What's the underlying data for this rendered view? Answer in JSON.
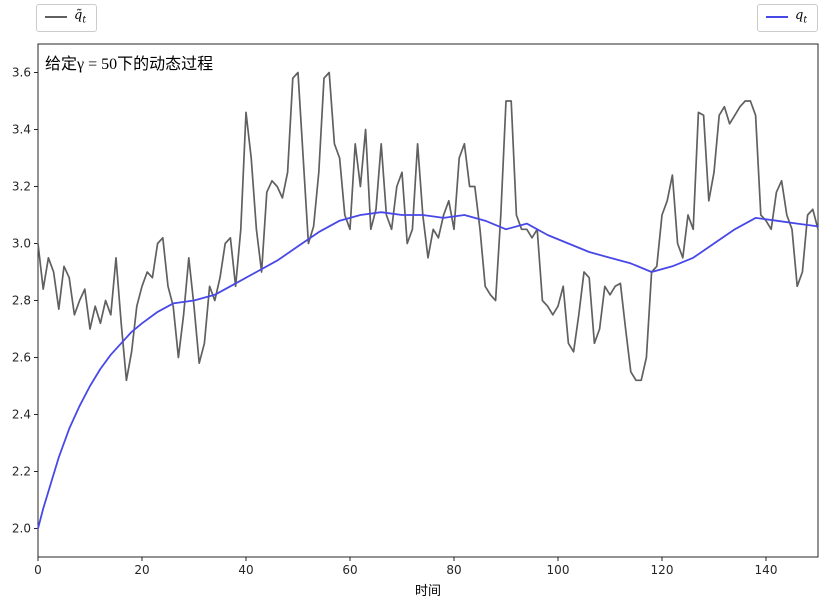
{
  "legend": {
    "left": {
      "base": "q̃",
      "sub": "t"
    },
    "right": {
      "base": "q",
      "sub": "t"
    }
  },
  "chart_data": {
    "type": "line",
    "title": "给定γ = 50下的动态过程",
    "xlabel": "时间",
    "ylabel": "",
    "xlim": [
      0,
      150
    ],
    "ylim": [
      1.9,
      3.7
    ],
    "xticks": [
      0,
      20,
      40,
      60,
      80,
      100,
      120,
      140
    ],
    "yticks": [
      2.0,
      2.2,
      2.4,
      2.6,
      2.8,
      3.0,
      3.2,
      3.4,
      3.6
    ],
    "grid": false,
    "legend_position": "above axes: gray series upper-left, blue series upper-right",
    "series": [
      {
        "name": "q̃t",
        "color": "#606060",
        "line_width": 1.7,
        "values": [
          3.0,
          2.84,
          2.95,
          2.9,
          2.77,
          2.92,
          2.88,
          2.75,
          2.8,
          2.84,
          2.7,
          2.78,
          2.72,
          2.8,
          2.75,
          2.95,
          2.72,
          2.52,
          2.62,
          2.78,
          2.85,
          2.9,
          2.88,
          3.0,
          3.02,
          2.85,
          2.78,
          2.6,
          2.75,
          2.95,
          2.78,
          2.58,
          2.65,
          2.85,
          2.8,
          2.88,
          3.0,
          3.02,
          2.85,
          3.05,
          3.46,
          3.3,
          3.05,
          2.9,
          3.18,
          3.22,
          3.2,
          3.16,
          3.25,
          3.58,
          3.6,
          3.3,
          3.0,
          3.06,
          3.25,
          3.58,
          3.6,
          3.35,
          3.3,
          3.1,
          3.05,
          3.35,
          3.2,
          3.4,
          3.05,
          3.12,
          3.35,
          3.1,
          3.05,
          3.2,
          3.25,
          3.0,
          3.05,
          3.35,
          3.1,
          2.95,
          3.05,
          3.02,
          3.1,
          3.15,
          3.05,
          3.3,
          3.35,
          3.2,
          3.2,
          3.05,
          2.85,
          2.82,
          2.8,
          3.1,
          3.5,
          3.5,
          3.1,
          3.05,
          3.05,
          3.02,
          3.05,
          2.8,
          2.78,
          2.75,
          2.78,
          2.85,
          2.65,
          2.62,
          2.75,
          2.9,
          2.88,
          2.65,
          2.7,
          2.85,
          2.82,
          2.85,
          2.86,
          2.7,
          2.55,
          2.52,
          2.52,
          2.6,
          2.9,
          2.92,
          3.1,
          3.15,
          3.24,
          3.0,
          2.95,
          3.1,
          3.05,
          3.46,
          3.45,
          3.15,
          3.25,
          3.45,
          3.48,
          3.42,
          3.45,
          3.48,
          3.5,
          3.5,
          3.45,
          3.1,
          3.08,
          3.05,
          3.18,
          3.22,
          3.1,
          3.05,
          2.85,
          2.9,
          3.1,
          3.12,
          3.05
        ]
      },
      {
        "name": "qt",
        "color": "#4848e8",
        "line_width": 1.8,
        "x": [
          0,
          1,
          2,
          3,
          4,
          5,
          6,
          8,
          10,
          12,
          14,
          16,
          18,
          20,
          23,
          26,
          30,
          34,
          38,
          42,
          46,
          50,
          54,
          58,
          62,
          66,
          70,
          74,
          78,
          82,
          86,
          90,
          94,
          98,
          102,
          106,
          110,
          114,
          118,
          122,
          126,
          130,
          134,
          138,
          142,
          146,
          150
        ],
        "values": [
          2.0,
          2.07,
          2.13,
          2.19,
          2.25,
          2.3,
          2.35,
          2.43,
          2.5,
          2.56,
          2.61,
          2.65,
          2.69,
          2.72,
          2.76,
          2.79,
          2.8,
          2.82,
          2.86,
          2.9,
          2.94,
          2.99,
          3.04,
          3.08,
          3.1,
          3.11,
          3.1,
          3.1,
          3.09,
          3.1,
          3.08,
          3.05,
          3.07,
          3.03,
          3.0,
          2.97,
          2.95,
          2.93,
          2.9,
          2.92,
          2.95,
          3.0,
          3.05,
          3.09,
          3.08,
          3.07,
          3.06
        ]
      }
    ]
  }
}
